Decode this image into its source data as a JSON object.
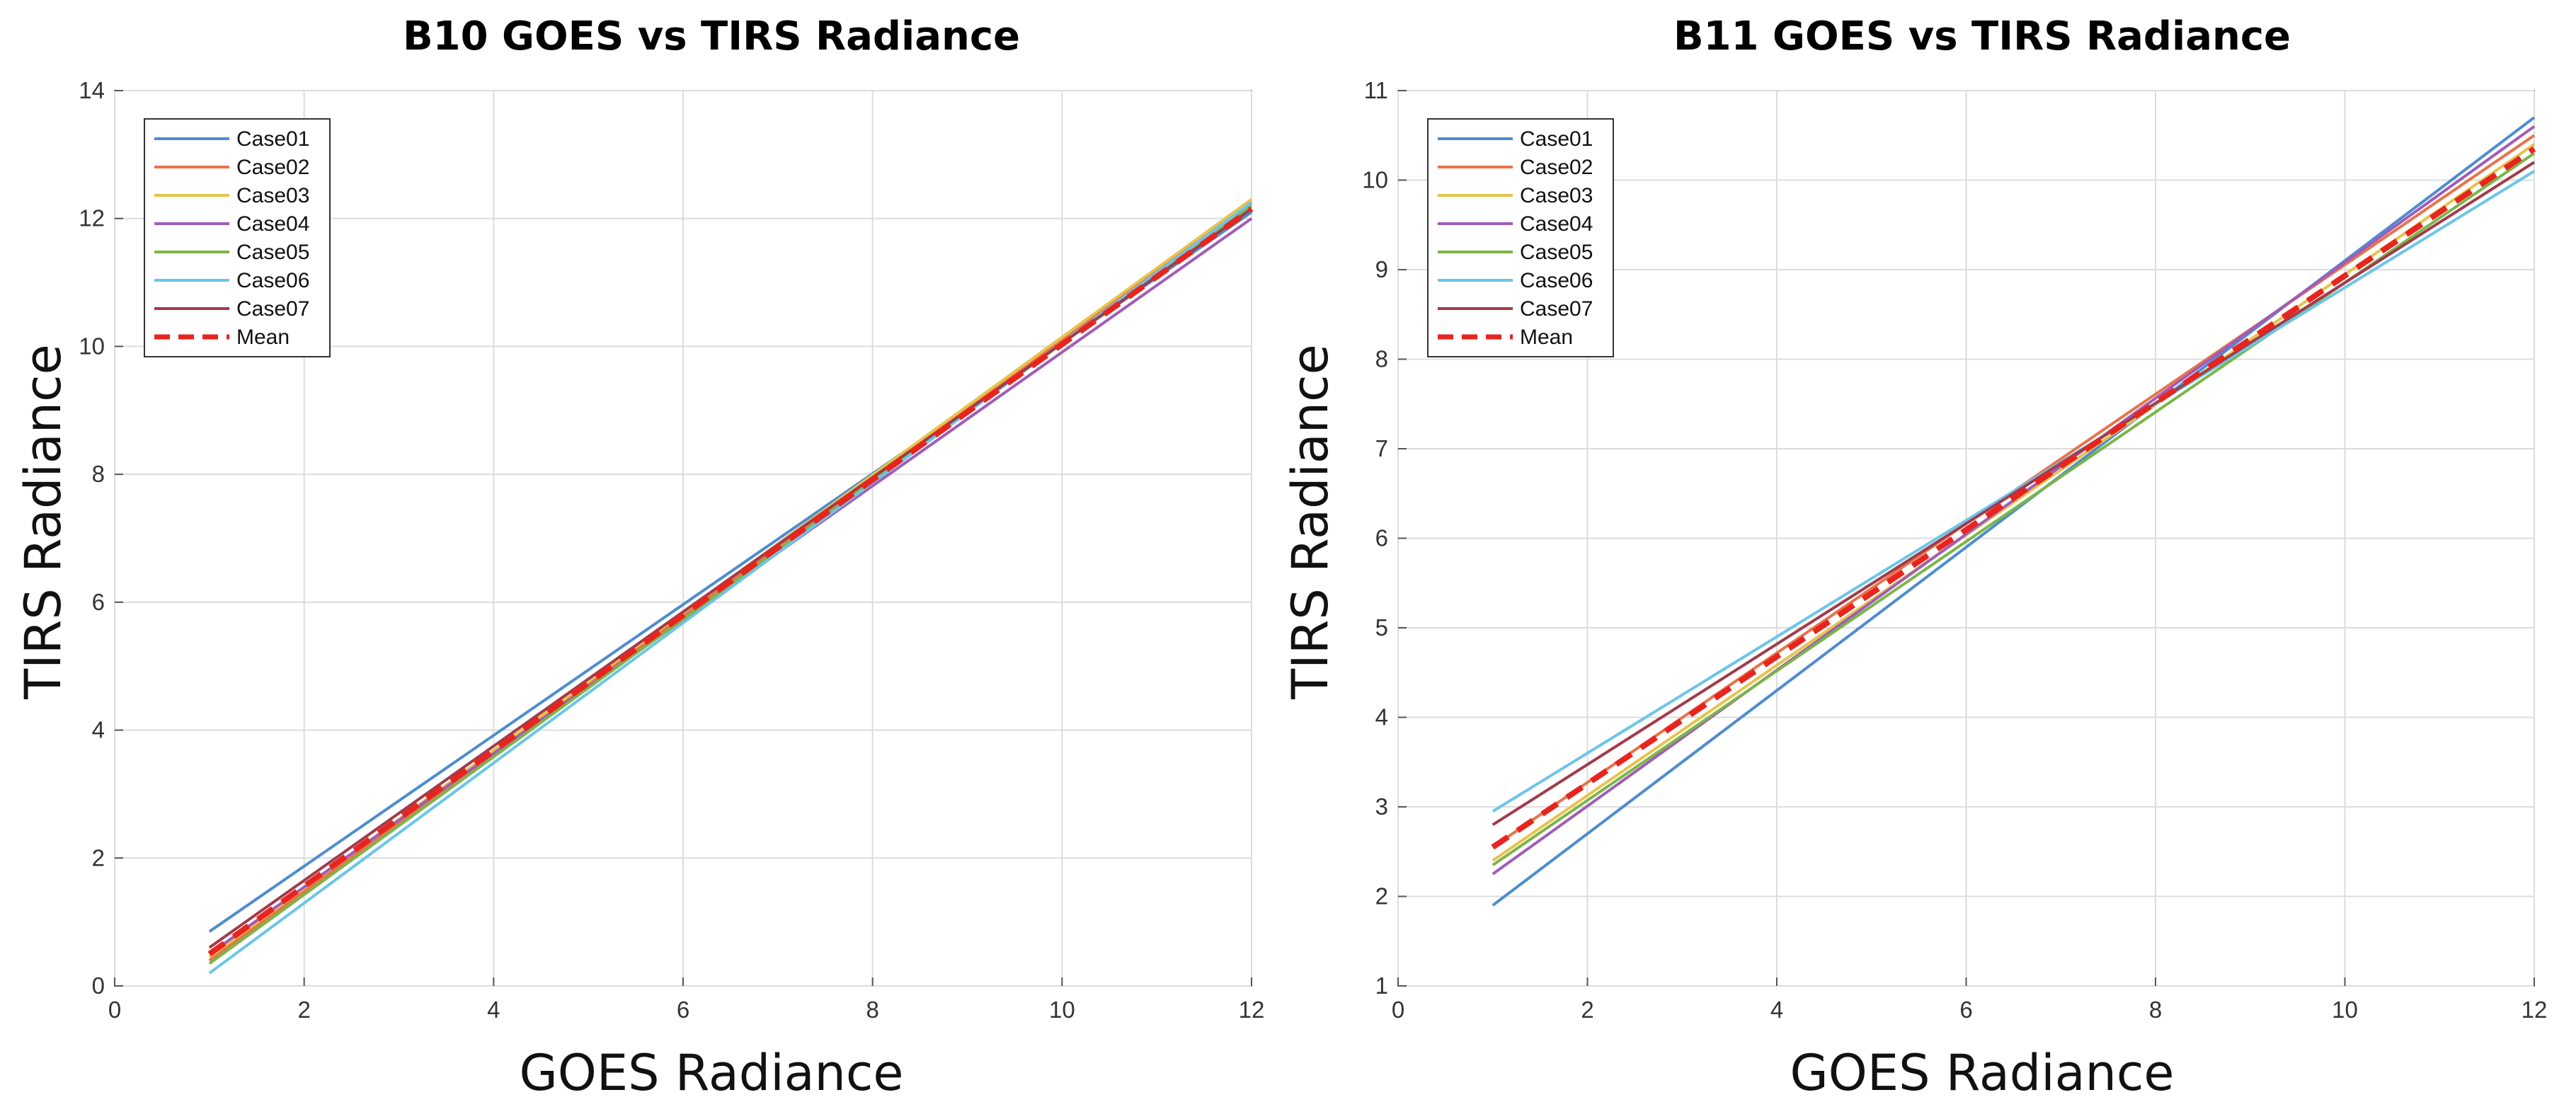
{
  "chart_data": [
    {
      "type": "line",
      "title": "B10 GOES vs TIRS Radiance",
      "xlabel": "GOES Radiance",
      "ylabel": "TIRS Radiance",
      "xlim": [
        0,
        12
      ],
      "ylim": [
        0,
        14
      ],
      "xticks": [
        0,
        2,
        4,
        6,
        8,
        10,
        12
      ],
      "yticks": [
        0,
        2,
        4,
        6,
        8,
        10,
        12,
        14
      ],
      "grid": true,
      "legend_position": "top-left",
      "series": [
        {
          "name": "Case01",
          "color": "#4e8ccf",
          "x": [
            1,
            12
          ],
          "y": [
            0.85,
            12.1
          ]
        },
        {
          "name": "Case02",
          "color": "#e8734a",
          "x": [
            1,
            12
          ],
          "y": [
            0.4,
            12.25
          ]
        },
        {
          "name": "Case03",
          "color": "#e8c34a",
          "x": [
            1,
            12
          ],
          "y": [
            0.45,
            12.3
          ]
        },
        {
          "name": "Case04",
          "color": "#a05cb8",
          "x": [
            1,
            12
          ],
          "y": [
            0.5,
            12.0
          ]
        },
        {
          "name": "Case05",
          "color": "#7ab648",
          "x": [
            1,
            12
          ],
          "y": [
            0.35,
            12.2
          ]
        },
        {
          "name": "Case06",
          "color": "#6cc5e8",
          "x": [
            1,
            12
          ],
          "y": [
            0.2,
            12.25
          ]
        },
        {
          "name": "Case07",
          "color": "#a23a4a",
          "x": [
            1,
            12
          ],
          "y": [
            0.6,
            12.15
          ]
        },
        {
          "name": "Mean",
          "color": "#e8241f",
          "dashed": true,
          "x": [
            1,
            12
          ],
          "y": [
            0.5,
            12.15
          ]
        }
      ]
    },
    {
      "type": "line",
      "title": "B11 GOES vs TIRS Radiance",
      "xlabel": "GOES Radiance",
      "ylabel": "TIRS Radiance",
      "xlim": [
        0,
        12
      ],
      "ylim": [
        1,
        11
      ],
      "xticks": [
        0,
        2,
        4,
        6,
        8,
        10,
        12
      ],
      "yticks": [
        1,
        2,
        3,
        4,
        5,
        6,
        7,
        8,
        9,
        10,
        11
      ],
      "grid": true,
      "legend_position": "top-left",
      "series": [
        {
          "name": "Case01",
          "color": "#4e8ccf",
          "x": [
            1,
            12
          ],
          "y": [
            1.9,
            10.7
          ]
        },
        {
          "name": "Case02",
          "color": "#e8734a",
          "x": [
            1,
            12
          ],
          "y": [
            2.55,
            10.5
          ]
        },
        {
          "name": "Case03",
          "color": "#e8c34a",
          "x": [
            1,
            12
          ],
          "y": [
            2.4,
            10.4
          ]
        },
        {
          "name": "Case04",
          "color": "#a05cb8",
          "x": [
            1,
            12
          ],
          "y": [
            2.25,
            10.6
          ]
        },
        {
          "name": "Case05",
          "color": "#7ab648",
          "x": [
            1,
            12
          ],
          "y": [
            2.35,
            10.3
          ]
        },
        {
          "name": "Case06",
          "color": "#6cc5e8",
          "x": [
            1,
            12
          ],
          "y": [
            2.95,
            10.1
          ]
        },
        {
          "name": "Case07",
          "color": "#a23a4a",
          "x": [
            1,
            12
          ],
          "y": [
            2.8,
            10.2
          ]
        },
        {
          "name": "Mean",
          "color": "#e8241f",
          "dashed": true,
          "x": [
            1,
            12
          ],
          "y": [
            2.55,
            10.35
          ]
        }
      ]
    }
  ]
}
